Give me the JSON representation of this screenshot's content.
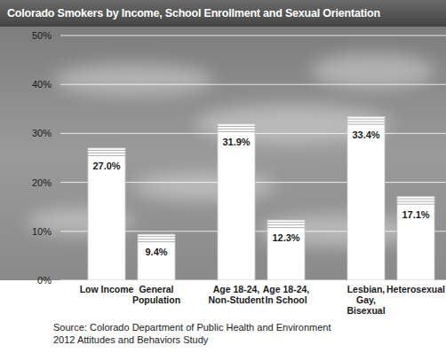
{
  "chart_data": {
    "type": "bar",
    "title": "Colorado Smokers by Income, School Enrollment and Sexual Orientation",
    "categories": [
      "Low Income",
      "General Population",
      "Age 18-24, Non-Student",
      "Age 18-24, In School",
      "Lesbian, Gay, Bisexual",
      "Heterosexual"
    ],
    "values": [
      27.0,
      9.4,
      31.9,
      12.3,
      33.4,
      17.1
    ],
    "value_labels": [
      "27.0%",
      "9.4%",
      "31.9%",
      "12.3%",
      "33.4%",
      "17.1%"
    ],
    "color": "#ffffff",
    "ylim": [
      0,
      50
    ],
    "yticks": [
      {
        "value": 0,
        "label": "0%"
      },
      {
        "value": 10,
        "label": "10%"
      },
      {
        "value": 20,
        "label": "20%"
      },
      {
        "value": 30,
        "label": "30%"
      },
      {
        "value": 40,
        "label": "40%"
      },
      {
        "value": 50,
        "label": "50%"
      }
    ],
    "grid": true,
    "data_labels": true,
    "annotations": [
      "Source: Colorado Department of Public Health and Environment",
      "2012 Attitudes and Behaviors Study"
    ]
  }
}
